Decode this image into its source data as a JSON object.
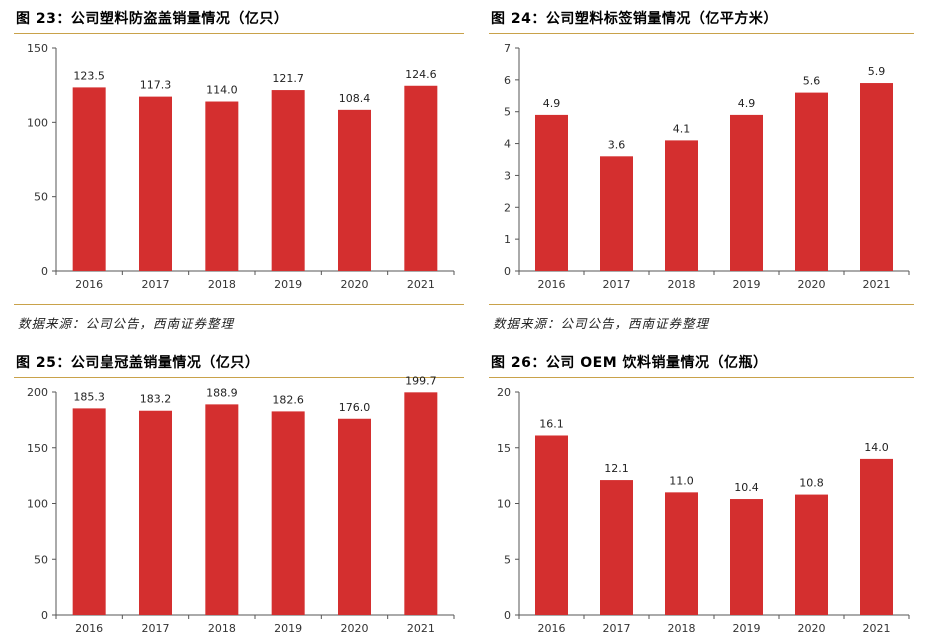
{
  "charts": [
    {
      "title": "图 23：公司塑料防盗盖销量情况（亿只）",
      "source": "数据来源：公司公告，西南证券整理"
    },
    {
      "title": "图 24：公司塑料标签销量情况（亿平方米）",
      "source": "数据来源：公司公告，西南证券整理"
    },
    {
      "title": "图 25：公司皇冠盖销量情况（亿只）",
      "source": ""
    },
    {
      "title": "图 26：公司 OEM 饮料销量情况（亿瓶）",
      "source": ""
    }
  ],
  "colors": {
    "bar": "#d42f2f",
    "rule": "#c9a24a",
    "axis": "#555555"
  },
  "chart_data": [
    {
      "type": "bar",
      "title": "图 23：公司塑料防盗盖销量情况（亿只）",
      "categories": [
        "2016",
        "2017",
        "2018",
        "2019",
        "2020",
        "2021"
      ],
      "values": [
        123.5,
        117.3,
        114.0,
        121.7,
        108.4,
        124.6
      ],
      "value_labels": [
        "123.5",
        "117.3",
        "114.0",
        "121.7",
        "108.4",
        "124.6"
      ],
      "ylim": [
        0,
        150
      ],
      "yticks": [
        "0",
        "50",
        "100",
        "150"
      ],
      "grid": false
    },
    {
      "type": "bar",
      "title": "图 24：公司塑料标签销量情况（亿平方米）",
      "categories": [
        "2016",
        "2017",
        "2018",
        "2019",
        "2020",
        "2021"
      ],
      "values": [
        4.9,
        3.6,
        4.1,
        4.9,
        5.6,
        5.9
      ],
      "value_labels": [
        "4.9",
        "3.6",
        "4.1",
        "4.9",
        "5.6",
        "5.9"
      ],
      "ylim": [
        0,
        7
      ],
      "yticks": [
        "0",
        "1",
        "2",
        "3",
        "4",
        "5",
        "6",
        "7"
      ],
      "grid": false
    },
    {
      "type": "bar",
      "title": "图 25：公司皇冠盖销量情况（亿只）",
      "categories": [
        "2016",
        "2017",
        "2018",
        "2019",
        "2020",
        "2021"
      ],
      "values": [
        185.3,
        183.2,
        188.9,
        182.6,
        176.0,
        199.7
      ],
      "value_labels": [
        "185.3",
        "183.2",
        "188.9",
        "182.6",
        "176.0",
        "199.7"
      ],
      "ylim": [
        0,
        200
      ],
      "yticks": [
        "0",
        "50",
        "100",
        "150",
        "200"
      ],
      "grid": false
    },
    {
      "type": "bar",
      "title": "图 26：公司 OEM 饮料销量情况（亿瓶）",
      "categories": [
        "2016",
        "2017",
        "2018",
        "2019",
        "2020",
        "2021"
      ],
      "values": [
        16.1,
        12.1,
        11.0,
        10.4,
        10.8,
        14.0
      ],
      "value_labels": [
        "16.1",
        "12.1",
        "11.0",
        "10.4",
        "10.8",
        "14.0"
      ],
      "ylim": [
        0,
        20
      ],
      "yticks": [
        "0",
        "5",
        "10",
        "15",
        "20"
      ],
      "grid": false
    }
  ]
}
